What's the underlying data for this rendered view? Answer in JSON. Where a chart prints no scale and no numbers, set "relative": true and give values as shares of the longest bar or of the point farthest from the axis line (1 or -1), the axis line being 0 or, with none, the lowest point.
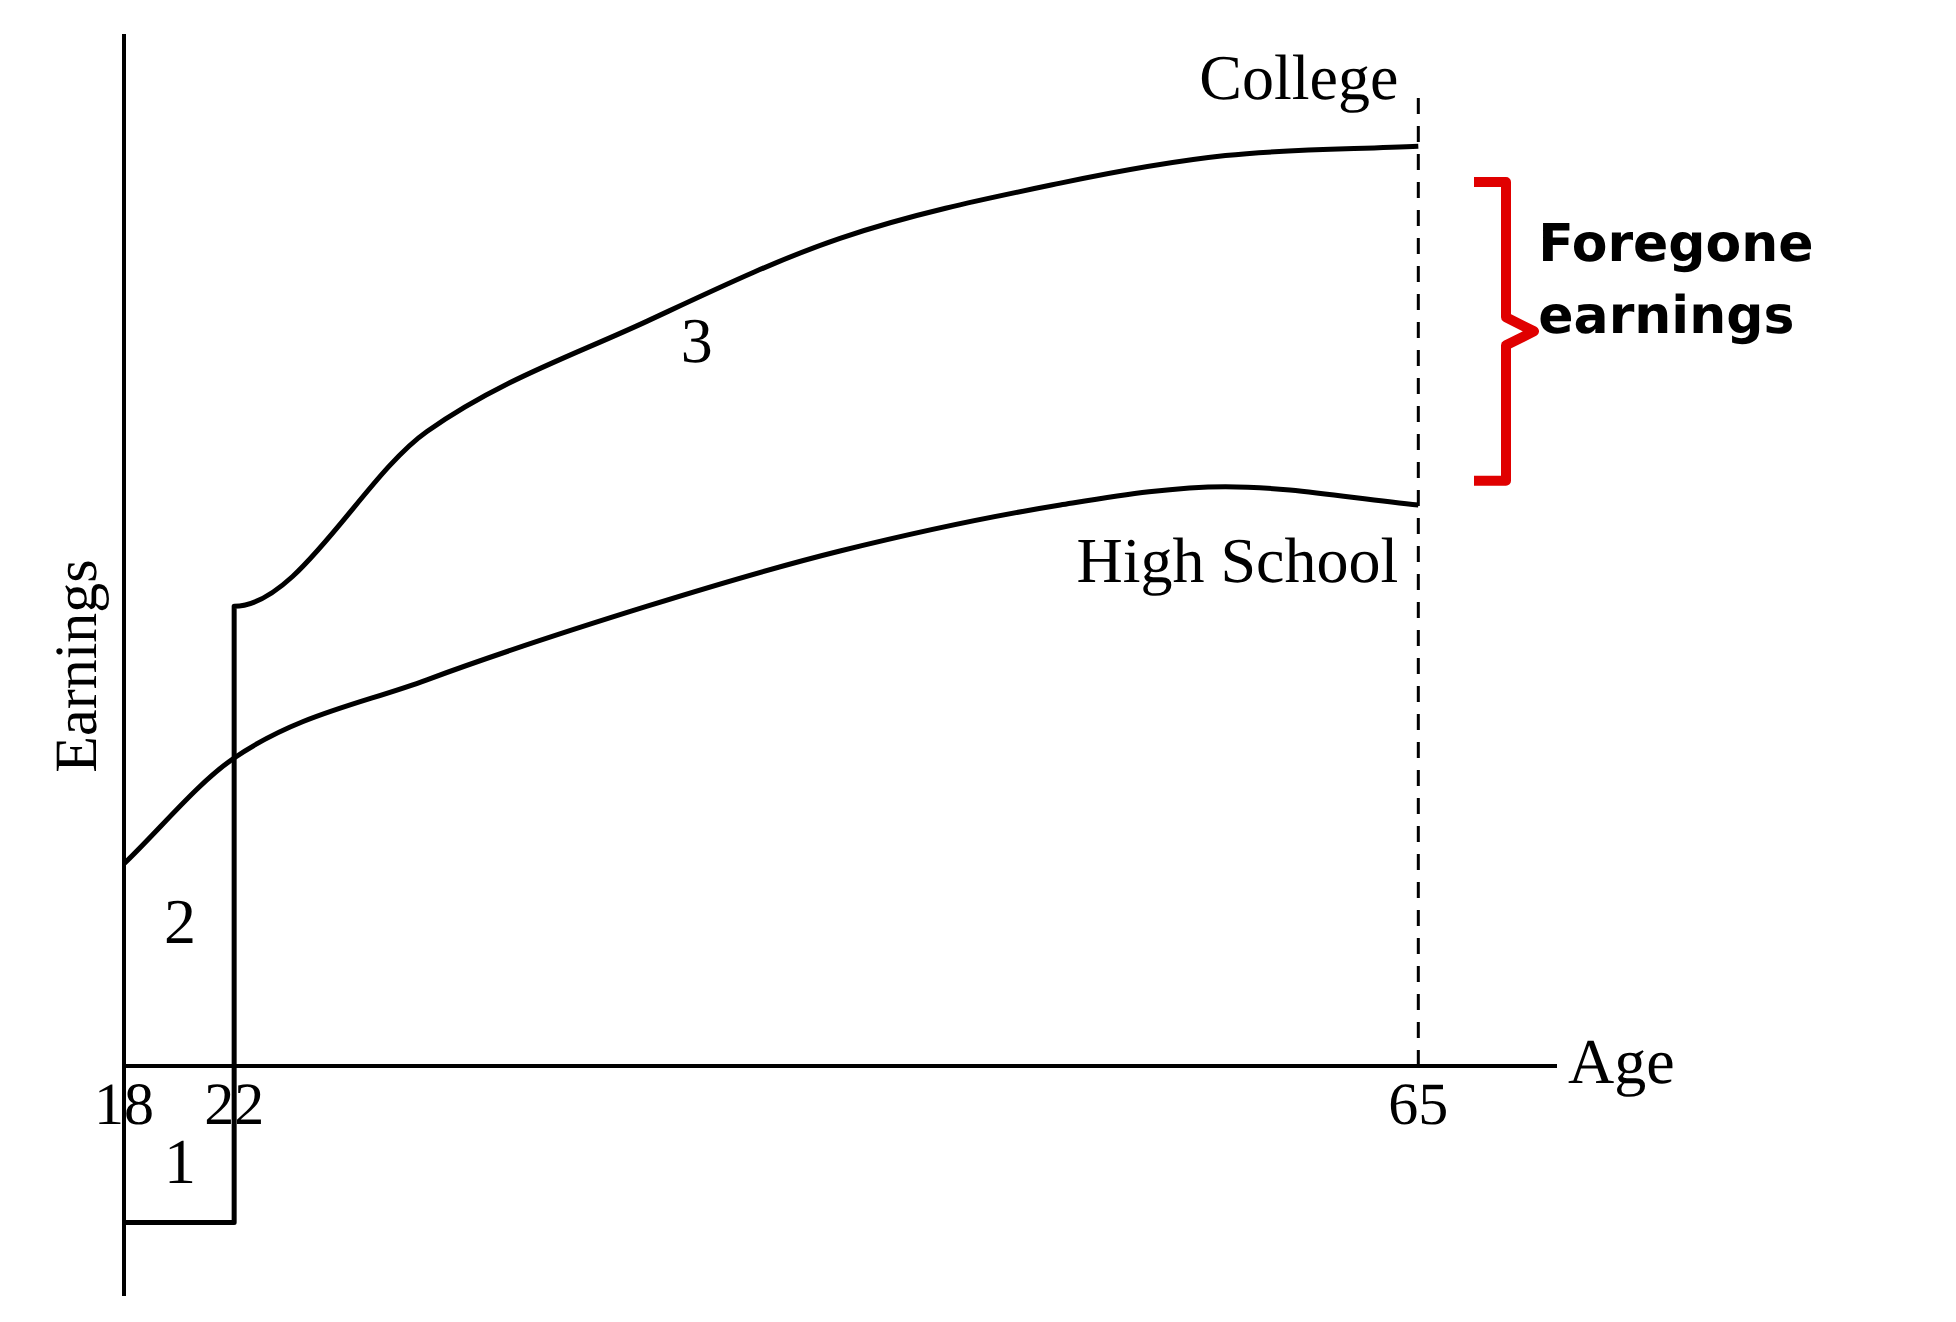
{
  "chart_data": {
    "type": "line",
    "relative": true,
    "ylabel": "Earnings",
    "xlabel": "Age",
    "xlim": [
      18,
      70
    ],
    "xticks": [
      18,
      22,
      65
    ],
    "grid": false,
    "legend": false,
    "marker": "none",
    "line_style": "solid",
    "series": [
      {
        "name": "College",
        "color": "#000000",
        "x": [
          18,
          22,
          22,
          29,
          37,
          44,
          52,
          58,
          65
        ],
        "values": [
          -0.17,
          -0.17,
          0.5,
          0.69,
          0.81,
          0.9,
          0.96,
          0.99,
          1
        ]
      },
      {
        "name": "High School",
        "color": "#000000",
        "x": [
          18,
          22,
          29,
          37,
          44,
          52,
          58,
          65
        ],
        "values": [
          0.22,
          0.335,
          0.42,
          0.5,
          0.56,
          0.61,
          0.63,
          0.61
        ]
      }
    ],
    "ref_lines": [
      {
        "axis": "x",
        "value": 65,
        "line_style": "dashed"
      }
    ],
    "annotations": [
      "1",
      "2",
      "3",
      "Foregone earnings"
    ]
  }
}
